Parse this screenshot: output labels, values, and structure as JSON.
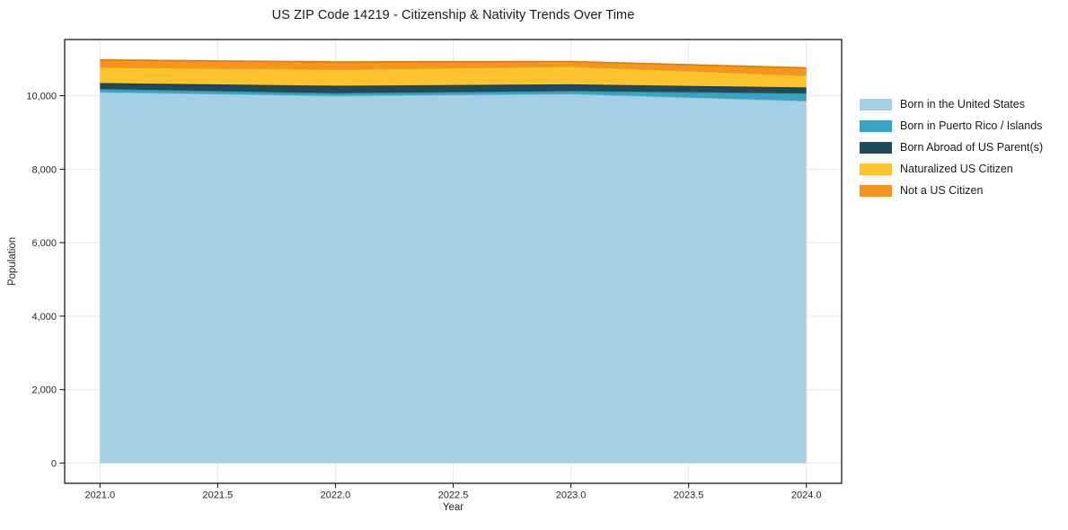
{
  "chart_data": {
    "type": "area",
    "stacked": true,
    "title": "US ZIP Code 14219 - Citizenship & Nativity Trends Over Time",
    "xlabel": "Year",
    "ylabel": "Population",
    "x": [
      2021,
      2022,
      2023,
      2024
    ],
    "series": [
      {
        "name": "Born in the United States",
        "color": "#a5cfe4",
        "edge_color": "#7fb8d6",
        "values": [
          10100,
          10000,
          10050,
          9860
        ]
      },
      {
        "name": "Born in Puerto Rico / Islands",
        "color": "#3aa3c0",
        "edge_color": "#2d8ba6",
        "values": [
          85,
          70,
          80,
          205
        ]
      },
      {
        "name": "Born Abroad of US Parent(s)",
        "color": "#1f4a5a",
        "edge_color": "#15333f",
        "values": [
          160,
          200,
          180,
          160
        ]
      },
      {
        "name": "Naturalized US Citizen",
        "color": "#fcc32d",
        "edge_color": "#e0a714",
        "values": [
          435,
          450,
          490,
          330
        ]
      },
      {
        "name": "Not a US Citizen",
        "color": "#f5941f",
        "edge_color": "#dd7c0c",
        "values": [
          195,
          200,
          130,
          205
        ]
      }
    ],
    "xlim": [
      2020.85,
      2024.15
    ],
    "ylim": [
      -550,
      11530
    ],
    "xticks": [
      2021.0,
      2021.5,
      2022.0,
      2022.5,
      2023.0,
      2023.5,
      2024.0
    ],
    "xtick_labels": [
      "2021.0",
      "2021.5",
      "2022.0",
      "2022.5",
      "2023.0",
      "2023.5",
      "2024.0"
    ],
    "yticks": [
      0,
      2000,
      4000,
      6000,
      8000,
      10000
    ],
    "ytick_labels": [
      "0",
      "2,000",
      "4,000",
      "6,000",
      "8,000",
      "10,000"
    ],
    "grid": true,
    "grid_color": "#e8e8e8",
    "spine_color": "#1a1a1a",
    "tick_color": "#1a1a1a",
    "text_color": "#262626",
    "background": "#ffffff",
    "legend_position": "right"
  }
}
